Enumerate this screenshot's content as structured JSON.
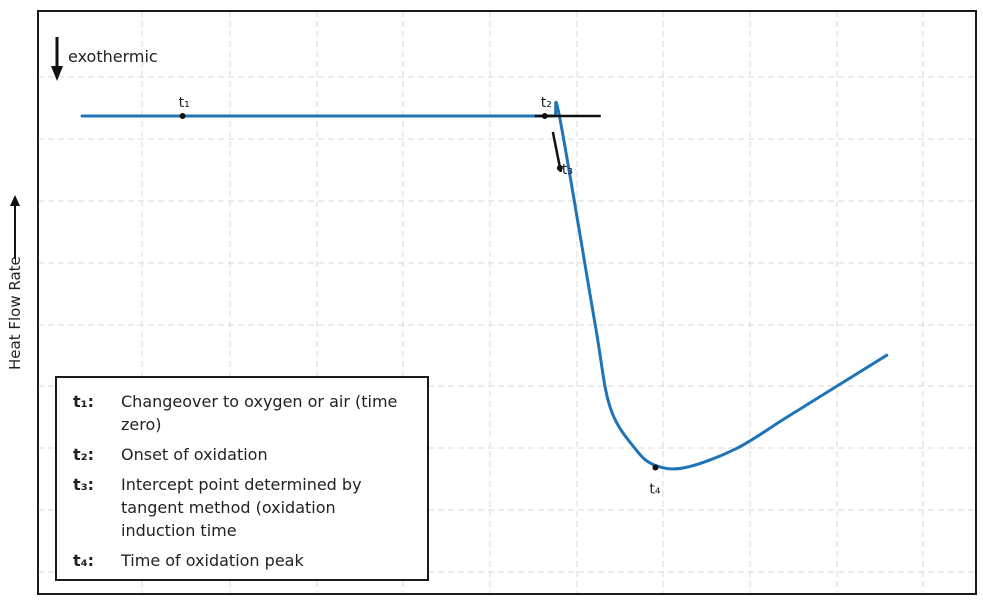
{
  "chart_data": {
    "type": "line",
    "title": "",
    "xlabel": "",
    "ylabel": "Heat Flow Rate",
    "ylabel_arrow": "up",
    "exo_annotation": "exothermic",
    "exo_arrow": "down",
    "grid": true,
    "axis_ticks": false,
    "series": [
      {
        "color": "#1f73b7",
        "x": [
          0.0,
          0.2,
          0.6,
          0.85,
          0.92,
          0.94,
          0.95,
          1.02,
          1.05,
          1.1,
          1.14,
          1.2,
          1.3,
          1.4,
          1.5,
          1.6
        ],
        "y": [
          1.0,
          1.0,
          1.0,
          1.0,
          1.0,
          1.0,
          0.99,
          0.0,
          -0.4,
          -0.6,
          -0.68,
          -0.69,
          -0.6,
          -0.45,
          -0.3,
          -0.15
        ]
      }
    ],
    "points": [
      {
        "name": "t1",
        "label": "t₁",
        "x": 0.2,
        "y": 1.0
      },
      {
        "name": "t2",
        "label": "t₂",
        "x": 0.92,
        "y": 1.0
      },
      {
        "name": "t3",
        "label": "t₃",
        "x": 0.95,
        "y": 0.75
      },
      {
        "name": "t4",
        "label": "t₄",
        "x": 1.14,
        "y": -0.69
      }
    ],
    "legend": [
      {
        "key": "t₁:",
        "text": "Changeover to oxygen or air (time zero)"
      },
      {
        "key": "t₂:",
        "text": "Onset of oxidation"
      },
      {
        "key": "t₃:",
        "text": "Intercept point determined by tangent method (oxidation induction time"
      },
      {
        "key": "t₄:",
        "text": "Time of oxidation peak"
      }
    ],
    "legend_position": "bottom-left"
  }
}
